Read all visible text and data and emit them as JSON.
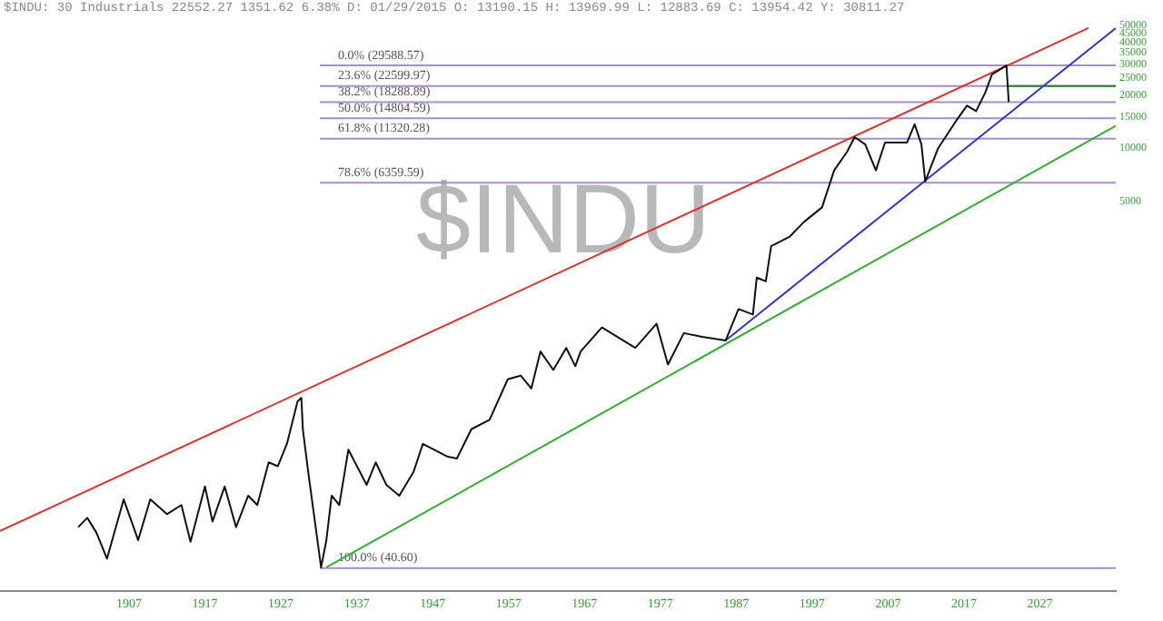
{
  "chart_data": {
    "type": "line",
    "title": "$INDU: 30 Industrials 22552.27 1351.62 6.38% D: 01/29/2015 O: 13190.15 H: 13969.99 L: 12883.69 C: 13954.42 Y: 30811.27",
    "annotations": [
      "$INDU"
    ],
    "log": "y",
    "grid": false,
    "legend": false,
    "marker": "none",
    "xlim": [
      1890,
      2037
    ],
    "xticks": [
      {
        "value": 1907,
        "label": "1907"
      },
      {
        "value": 1917,
        "label": "1917"
      },
      {
        "value": 1927,
        "label": "1927"
      },
      {
        "value": 1937,
        "label": "1937"
      },
      {
        "value": 1947,
        "label": "1947"
      },
      {
        "value": 1957,
        "label": "1957"
      },
      {
        "value": 1967,
        "label": "1967"
      },
      {
        "value": 1977,
        "label": "1977"
      },
      {
        "value": 1987,
        "label": "1987"
      },
      {
        "value": 1997,
        "label": "1997"
      },
      {
        "value": 2007,
        "label": "2007"
      },
      {
        "value": 2017,
        "label": "2017"
      },
      {
        "value": 2027,
        "label": "2027"
      }
    ],
    "ylim": [
      30,
      50000
    ],
    "yticks": [
      5000,
      10000,
      15000,
      20000,
      25000,
      30000,
      35000,
      40000,
      45000,
      50000
    ],
    "series": [
      {
        "color": "#111111",
        "x": [
          1900.3,
          1901.5,
          1902.7,
          1904.1,
          1906.3,
          1908.2,
          1909.8,
          1912.0,
          1913.9,
          1915.1,
          1917.0,
          1918.0,
          1919.6,
          1921.1,
          1922.7,
          1923.9,
          1925.4,
          1926.6,
          1927.8,
          1929.2,
          1929.7,
          1929.9,
          1930.6,
          1932.3,
          1933.0,
          1933.7,
          1934.7,
          1935.9,
          1938.3,
          1939.5,
          1940.9,
          1942.6,
          1944.5,
          1945.7,
          1949.0,
          1950.2,
          1952.1,
          1954.5,
          1956.9,
          1958.6,
          1960.0,
          1961.2,
          1962.9,
          1964.6,
          1965.8,
          1966.5,
          1969.3,
          1973.7,
          1976.5,
          1978.0,
          1980.1,
          1982.5,
          1985.6,
          1987.3,
          1989.2,
          1989.7,
          1990.9,
          1991.6,
          1994.0,
          1995.9,
          1998.3,
          1999.9,
          2001.6,
          2002.6,
          2004.0,
          2005.4,
          2006.6,
          2009.5,
          2010.5,
          2011.4,
          2011.9,
          2013.6,
          2016.0,
          2017.4,
          2018.6,
          2019.8,
          2020.7,
          2022.6,
          2022.9
        ],
        "values": [
          69.5,
          78.5,
          64.7,
          46,
          100,
          58.6,
          100,
          82.4,
          92.9,
          57.3,
          118.5,
          74.8,
          118.5,
          69.5,
          105,
          92.9,
          162.5,
          154.6,
          207,
          361,
          379,
          251,
          144,
          41,
          58.6,
          105,
          92.9,
          192,
          121,
          162.5,
          121,
          105,
          144,
          207,
          175,
          171,
          251,
          284,
          483,
          507,
          428,
          695,
          546,
          729,
          573,
          695,
          953,
          729,
          1000,
          586,
          885,
          843,
          803,
          1213,
          1130,
          1832,
          1746,
          2767,
          3124,
          3793,
          4603,
          7477,
          9525,
          11570,
          10500,
          7477,
          10760,
          10760,
          13700,
          10500,
          6470,
          10000,
          14380,
          17460,
          16250,
          20690,
          26360,
          29588,
          18300
        ]
      },
      {
        "color": "#e03030",
        "x": [
          1890,
          2033.4
        ],
        "values": [
          66,
          48300
        ]
      },
      {
        "color": "#3030e0",
        "x": [
          1985.6,
          2037
        ],
        "values": [
          803,
          48300
        ]
      },
      {
        "color": "#30b030",
        "x": [
          1933,
          2037
        ],
        "values": [
          41,
          13400
        ]
      },
      {
        "color": "#1a8a1a",
        "x": [
          2022.9,
          2037
        ],
        "values": [
          22600,
          22600
        ]
      }
    ],
    "ref_lines": [
      {
        "axis": "y",
        "value": 29588.57,
        "label": "0.0% (29588.57)",
        "color": "#a58fc4"
      },
      {
        "axis": "y",
        "value": 22599.97,
        "label": "23.6% (22599.97)",
        "color": "#a58fc4"
      },
      {
        "axis": "y",
        "value": 18288.89,
        "label": "38.2% (18288.89)",
        "color": "#a58fc4"
      },
      {
        "axis": "y",
        "value": 14804.59,
        "label": "50.0% (14804.59)",
        "color": "#a58fc4"
      },
      {
        "axis": "y",
        "value": 11320.28,
        "label": "61.8% (11320.28)",
        "color": "#a58fc4"
      },
      {
        "axis": "y",
        "value": 6359.59,
        "label": "78.6% (6359.59)",
        "color": "#a58fc4"
      },
      {
        "axis": "y",
        "value": 40.6,
        "label": "100.0% (40.60)",
        "color": "#a58fc4"
      }
    ]
  }
}
